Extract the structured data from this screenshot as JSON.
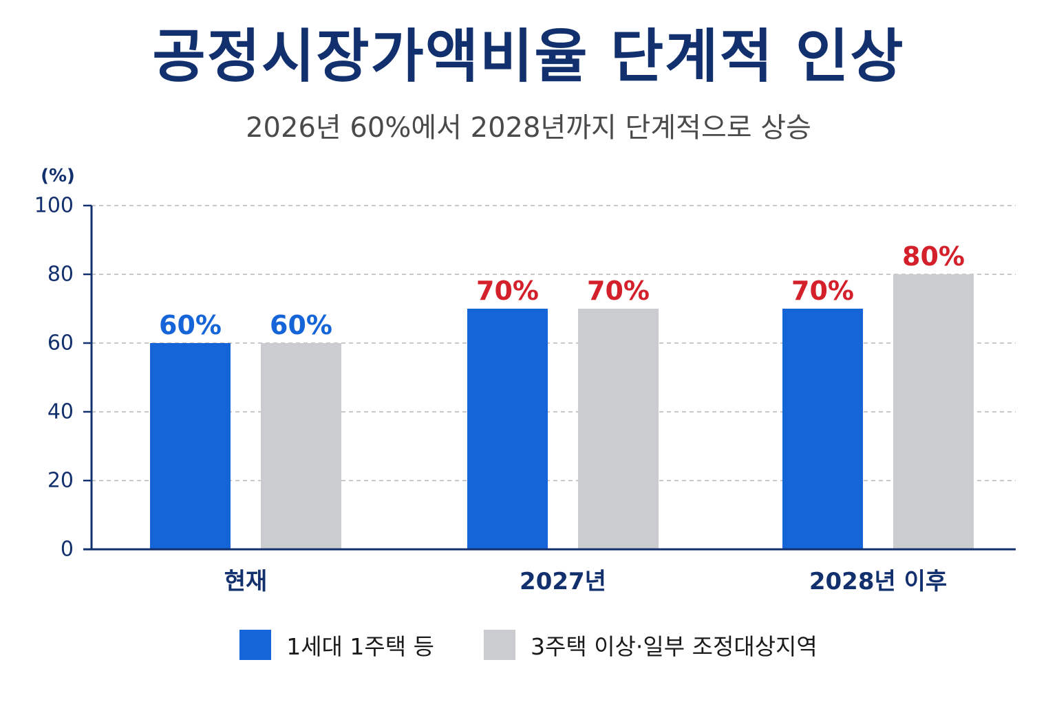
{
  "chart_data": {
    "type": "bar",
    "title": "공정시장가액비율 단계적 인상",
    "subtitle": "2026년 60%에서 2028년까지 단계적으로 상승",
    "ylabel": "(%)",
    "xlabel": "",
    "ylim": [
      0,
      100
    ],
    "yticks": [
      0,
      20,
      40,
      60,
      80,
      100
    ],
    "grid": true,
    "legend_position": "bottom",
    "categories": [
      "현재",
      "2027년",
      "2028년 이후"
    ],
    "series": [
      {
        "name": "1세대 1주택 등",
        "color": "#1565d8",
        "values": [
          60,
          70,
          70
        ],
        "labels": [
          "60%",
          "70%",
          "70%"
        ],
        "label_colors": [
          "#1565d8",
          "#d3202a",
          "#d3202a"
        ]
      },
      {
        "name": "3주택 이상·일부 조정대상지역",
        "color": "#cbcccf",
        "values": [
          60,
          70,
          80
        ],
        "labels": [
          "60%",
          "70%",
          "80%"
        ],
        "label_colors": [
          "#1565d8",
          "#d3202a",
          "#d3202a"
        ]
      }
    ],
    "colors": {
      "axis": "#13306e",
      "grid": "#b5b5b5",
      "tick_text": "#13306e"
    }
  }
}
